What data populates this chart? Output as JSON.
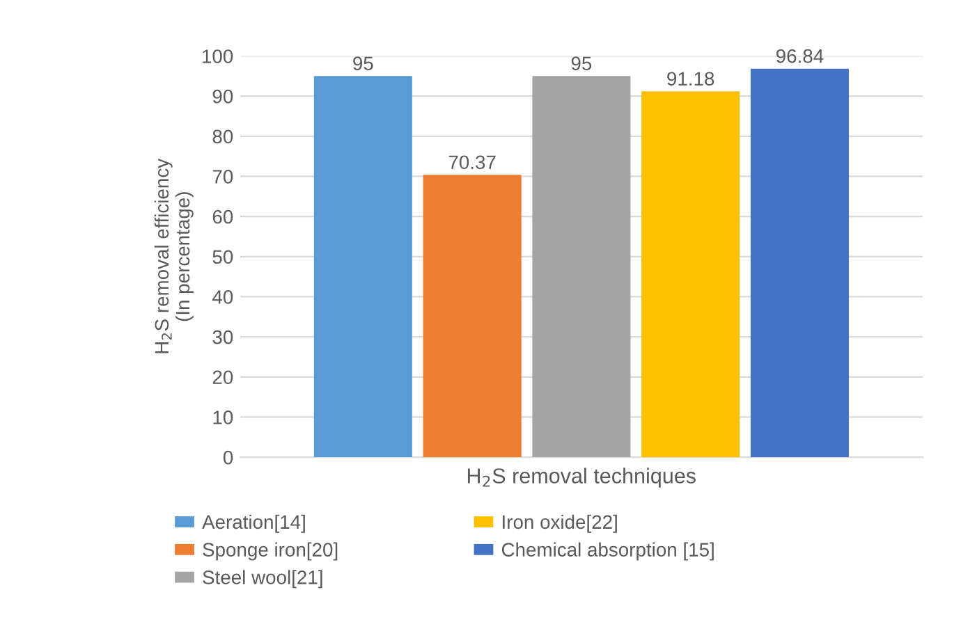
{
  "chart_data": {
    "type": "bar",
    "xlabel": "H$_{2}$S removal techniques",
    "ylabel": "H$_{2}$S removal efficiency\n(In percentage)",
    "categories": [
      null
    ],
    "series": [
      {
        "name": "Aeration[14]",
        "color": "#5b9bd5",
        "values": [
          95
        ]
      },
      {
        "name": "Sponge iron[20]",
        "color": "#ed7d31",
        "values": [
          70.37
        ]
      },
      {
        "name": "Steel wool[21]",
        "color": "#a5a5a5",
        "values": [
          95
        ]
      },
      {
        "name": "Iron oxide[22]",
        "color": "#ffc000",
        "values": [
          91.18
        ]
      },
      {
        "name": "Chemical absorption [15]",
        "color": "#4472c4",
        "values": [
          96.84
        ]
      }
    ],
    "ylim": [
      0,
      100
    ],
    "yticks": [
      0,
      10,
      20,
      30,
      40,
      50,
      60,
      70,
      80,
      90,
      100
    ],
    "grid": "y",
    "legend": "bottom",
    "data_labels": true
  }
}
